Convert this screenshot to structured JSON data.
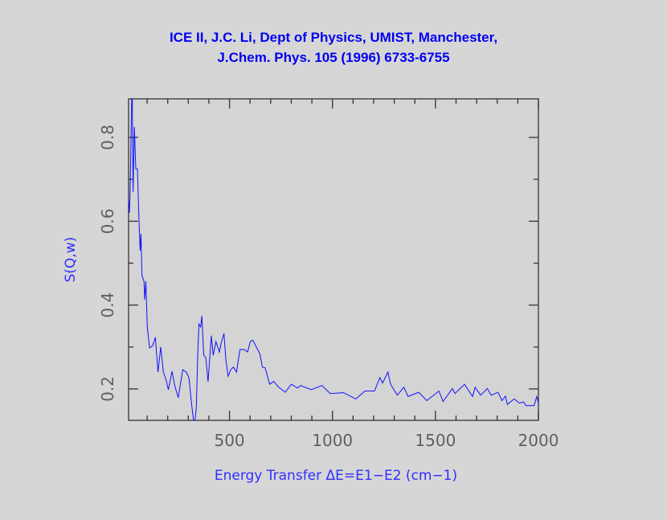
{
  "chart_data": {
    "type": "line",
    "title": [
      "ICE II, J.C. Li, Dept of Physics, UMIST, Manchester,",
      "J.Chem. Phys. 105 (1996) 6733-6755"
    ],
    "xlabel": "Energy Transfer ΔE=E1−E2 (cm−1)",
    "ylabel": "S(Q,w)",
    "xlim": [
      10,
      2000
    ],
    "ylim": [
      0.125,
      0.892
    ],
    "xticks": [
      500,
      1000,
      1500,
      2000
    ],
    "xtick_labels": [
      "500",
      "1000",
      "1500",
      "2000"
    ],
    "xminor_step": 100,
    "yticks": [
      0.2,
      0.4,
      0.6,
      0.8
    ],
    "ytick_labels": [
      "0.2",
      "0.4",
      "0.6",
      "0.8"
    ],
    "yminor_step": 0.1,
    "grid": false,
    "colors": {
      "line": "#1010ff",
      "title": "#0000f0",
      "background": "#d6d6d6"
    },
    "series": [
      {
        "x": [
          10,
          14,
          17,
          27,
          32,
          38,
          45,
          53,
          57,
          62,
          66,
          70,
          75,
          85,
          88,
          94,
          101,
          112,
          127,
          140,
          153,
          166,
          179,
          193,
          203,
          221,
          234,
          251,
          273,
          290,
          303,
          316,
          329,
          339,
          346,
          352,
          360,
          366,
          375,
          385,
          396,
          412,
          421,
          434,
          451,
          460,
          473,
          482,
          493,
          506,
          519,
          534,
          551,
          571,
          588,
          601,
          614,
          630,
          647,
          660,
          673,
          695,
          714,
          739,
          771,
          800,
          830,
          845,
          897,
          949,
          989,
          1054,
          1113,
          1158,
          1204,
          1230,
          1243,
          1269,
          1282,
          1315,
          1347,
          1367,
          1419,
          1458,
          1517,
          1537,
          1582,
          1595,
          1641,
          1680,
          1693,
          1719,
          1752,
          1771,
          1804,
          1823,
          1840,
          1849,
          1882,
          1908,
          1927,
          1940,
          1979,
          1992,
          2000
        ],
        "y": [
          0.65,
          0.62,
          0.66,
          0.95,
          0.67,
          0.825,
          0.725,
          0.725,
          0.66,
          0.585,
          0.53,
          0.57,
          0.47,
          0.457,
          0.413,
          0.457,
          0.348,
          0.298,
          0.303,
          0.323,
          0.24,
          0.3,
          0.24,
          0.22,
          0.198,
          0.242,
          0.208,
          0.179,
          0.246,
          0.24,
          0.227,
          0.164,
          0.11,
          0.156,
          0.284,
          0.355,
          0.348,
          0.374,
          0.28,
          0.275,
          0.217,
          0.327,
          0.28,
          0.313,
          0.288,
          0.31,
          0.332,
          0.271,
          0.23,
          0.246,
          0.252,
          0.24,
          0.294,
          0.294,
          0.288,
          0.313,
          0.316,
          0.3,
          0.284,
          0.252,
          0.25,
          0.211,
          0.218,
          0.204,
          0.192,
          0.211,
          0.202,
          0.208,
          0.198,
          0.208,
          0.189,
          0.191,
          0.176,
          0.195,
          0.195,
          0.227,
          0.214,
          0.24,
          0.211,
          0.185,
          0.204,
          0.182,
          0.192,
          0.172,
          0.195,
          0.17,
          0.201,
          0.189,
          0.211,
          0.182,
          0.204,
          0.185,
          0.201,
          0.185,
          0.192,
          0.172,
          0.183,
          0.163,
          0.176,
          0.166,
          0.169,
          0.16,
          0.16,
          0.182,
          0.166
        ]
      }
    ]
  }
}
